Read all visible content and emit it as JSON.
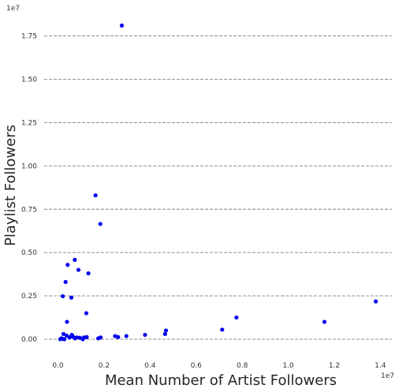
{
  "chart_data": {
    "type": "scatter",
    "title": "",
    "xlabel": "Mean Number of Artist Followers",
    "ylabel": "Playlist Followers",
    "x_multiplier_label": "1e7",
    "y_multiplier_label": "1e7",
    "xlim": [
      -0.06,
      1.45
    ],
    "ylim": [
      -0.1,
      1.88
    ],
    "x_ticks": [
      0.0,
      0.2,
      0.4,
      0.6,
      0.8,
      1.0,
      1.2,
      1.4
    ],
    "x_tick_labels": [
      "0.0",
      "0.2",
      "0.4",
      "0.6",
      "0.8",
      "1.0",
      "1.2",
      "1.4"
    ],
    "y_ticks": [
      0.0,
      0.25,
      0.5,
      0.75,
      1.0,
      1.25,
      1.5,
      1.75
    ],
    "y_tick_labels": [
      "0.00",
      "0.25",
      "0.50",
      "0.75",
      "1.00",
      "1.25",
      "1.50",
      "1.75"
    ],
    "grid": "horizontal dashed",
    "point_color": "#0000ee",
    "gridline_color": "#808080",
    "series": [
      {
        "x": [
          0.277,
          0.163,
          0.184,
          0.073,
          0.089,
          0.033,
          0.042,
          0.132,
          0.021,
          0.058,
          0.039,
          0.123,
          0.024,
          1.38,
          0.775,
          1.157,
          0.713,
          0.469,
          0.465,
          0.378,
          0.297,
          0.261,
          0.248,
          0.025,
          0.038,
          0.05,
          0.06,
          0.074,
          0.082,
          0.095,
          0.108,
          0.113,
          0.125,
          0.175,
          0.185,
          0.01,
          0.015,
          0.028,
          0.065
        ],
        "y": [
          1.81,
          0.83,
          0.665,
          0.458,
          0.4,
          0.33,
          0.429,
          0.38,
          0.248,
          0.24,
          0.1,
          0.15,
          0.03,
          0.218,
          0.125,
          0.1,
          0.055,
          0.05,
          0.03,
          0.025,
          0.018,
          0.012,
          0.018,
          0.0,
          0.02,
          0.01,
          0.025,
          0.005,
          0.01,
          0.008,
          0.0,
          0.01,
          0.012,
          0.005,
          0.01,
          0.0,
          0.005,
          0.0,
          0.015
        ]
      }
    ]
  }
}
